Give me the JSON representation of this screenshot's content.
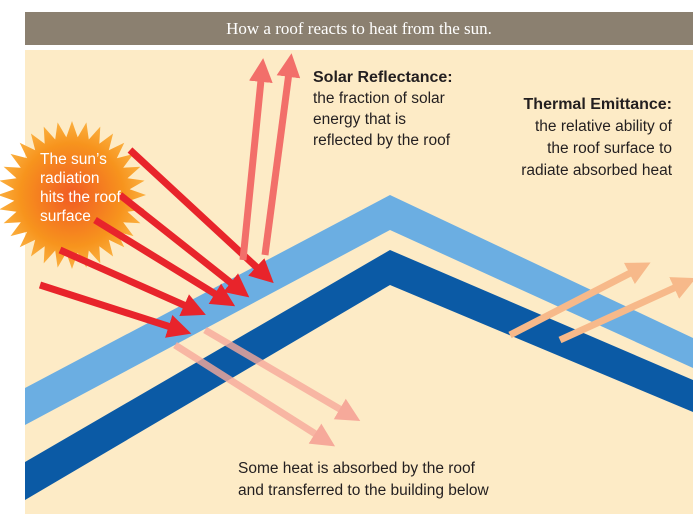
{
  "header": {
    "title": "How a roof reacts to heat from the sun."
  },
  "sun": {
    "lines": [
      "The sun’s",
      "radiation",
      "hits the roof",
      "surface"
    ]
  },
  "reflectance": {
    "title": "Solar Reflectance:",
    "lines": [
      "the fraction of solar",
      "energy that is",
      "reflected by the roof"
    ]
  },
  "emittance": {
    "title": "Thermal Emittance:",
    "lines": [
      "the relative ability of",
      "the roof surface to",
      "radiate absorbed heat"
    ]
  },
  "absorbed": {
    "lines": [
      "Some heat is absorbed by the roof",
      "and transferred to the building below"
    ]
  }
}
